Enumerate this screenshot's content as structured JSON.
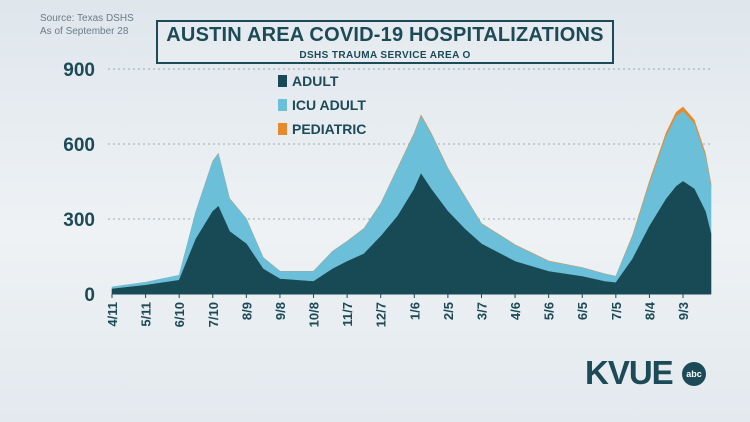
{
  "header": {
    "source_line1": "Source: Texas DSHS",
    "source_line2": "As of September 28",
    "title": "AUSTIN AREA COVID-19 HOSPITALIZATIONS",
    "subtitle": "DSHS TRAUMA SERVICE AREA O"
  },
  "logo": {
    "text": "KVUE",
    "badge": "abc"
  },
  "colors": {
    "adult": "#184a56",
    "icu_adult": "#6cbfd8",
    "pediatric": "#e8892a",
    "text": "#1d4a57",
    "grid": "#9aa9b2"
  },
  "chart_data": {
    "type": "area",
    "stacked": true,
    "title": "AUSTIN AREA COVID-19 HOSPITALIZATIONS",
    "subtitle": "DSHS TRAUMA SERVICE AREA O",
    "ylim": [
      0,
      900
    ],
    "yticks": [
      0,
      300,
      600,
      900
    ],
    "xtick_labels": [
      "4/11",
      "5/11",
      "6/10",
      "7/10",
      "8/9",
      "9/8",
      "10/8",
      "11/7",
      "12/7",
      "1/6",
      "2/5",
      "3/7",
      "4/6",
      "5/6",
      "6/5",
      "7/5",
      "8/4",
      "9/3"
    ],
    "x_start": "2020-04-11",
    "x_end": "2021-09-28",
    "legend_position": "top-left",
    "x": [
      "2020-04-11",
      "2020-05-11",
      "2020-06-10",
      "2020-06-25",
      "2020-07-10",
      "2020-07-15",
      "2020-07-25",
      "2020-08-09",
      "2020-08-24",
      "2020-09-08",
      "2020-10-08",
      "2020-10-25",
      "2020-11-07",
      "2020-11-22",
      "2020-12-07",
      "2020-12-22",
      "2021-01-06",
      "2021-01-12",
      "2021-01-21",
      "2021-02-05",
      "2021-02-20",
      "2021-03-07",
      "2021-04-06",
      "2021-05-06",
      "2021-06-05",
      "2021-06-25",
      "2021-07-05",
      "2021-07-20",
      "2021-08-04",
      "2021-08-19",
      "2021-08-28",
      "2021-09-03",
      "2021-09-13",
      "2021-09-23",
      "2021-09-28"
    ],
    "series": [
      {
        "name": "ADULT",
        "values": [
          20,
          35,
          55,
          220,
          330,
          350,
          250,
          200,
          100,
          60,
          50,
          100,
          130,
          160,
          230,
          310,
          420,
          480,
          420,
          330,
          260,
          200,
          130,
          90,
          70,
          50,
          45,
          140,
          270,
          380,
          430,
          450,
          420,
          330,
          240
        ]
      },
      {
        "name": "ICU ADULT",
        "values": [
          8,
          12,
          20,
          110,
          200,
          210,
          130,
          100,
          45,
          30,
          40,
          70,
          80,
          100,
          130,
          190,
          220,
          230,
          220,
          170,
          130,
          80,
          65,
          40,
          35,
          30,
          25,
          90,
          170,
          250,
          280,
          280,
          260,
          220,
          190
        ]
      },
      {
        "name": "PEDIATRIC",
        "values": [
          0,
          0,
          0,
          1,
          2,
          2,
          2,
          1,
          1,
          1,
          1,
          1,
          1,
          2,
          2,
          3,
          4,
          5,
          4,
          3,
          2,
          2,
          2,
          2,
          1,
          1,
          1,
          5,
          10,
          15,
          17,
          18,
          16,
          12,
          10
        ]
      }
    ]
  },
  "legend": [
    "ADULT",
    "ICU ADULT",
    "PEDIATRIC"
  ]
}
